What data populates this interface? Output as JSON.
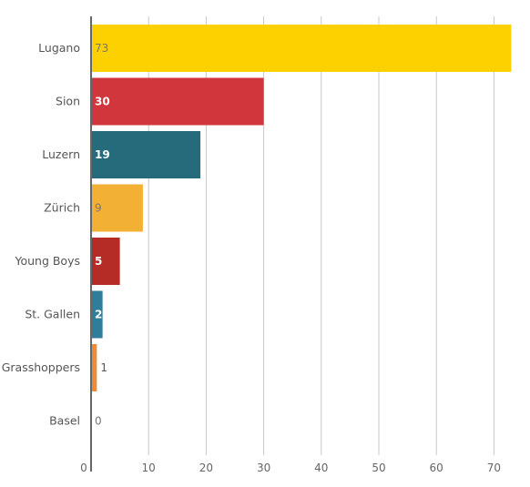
{
  "chart_data": {
    "type": "bar",
    "orientation": "horizontal",
    "categories": [
      "Lugano",
      "Sion",
      "Luzern",
      "Zürich",
      "Young Boys",
      "St. Gallen",
      "Grasshoppers",
      "Basel"
    ],
    "values": [
      73,
      30,
      19,
      9,
      5,
      2,
      1,
      0
    ],
    "colors": [
      "#fdd000",
      "#d0363b",
      "#256b7c",
      "#f2b035",
      "#b52b26",
      "#2f7d9a",
      "#ee8c3a",
      "#cccccc"
    ],
    "value_label_colors": [
      "#777777",
      "#ffffff",
      "#ffffff",
      "#777777",
      "#ffffff",
      "#ffffff",
      "#555555",
      "#777777"
    ],
    "x_ticks": [
      "0",
      "10",
      "20",
      "30",
      "40",
      "50",
      "60",
      "70"
    ],
    "xlim": [
      0,
      73
    ],
    "grid": true,
    "title": "",
    "xlabel": "",
    "ylabel": ""
  }
}
